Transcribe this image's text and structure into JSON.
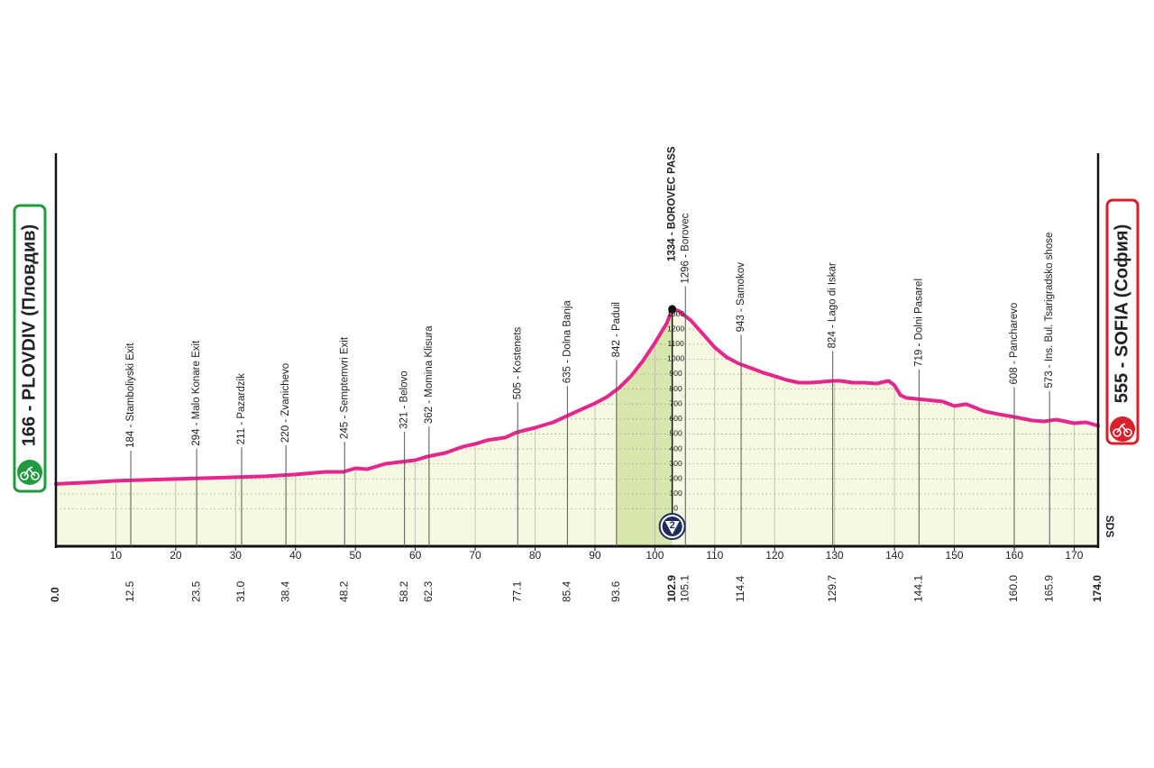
{
  "chart_data": {
    "type": "area",
    "color": "#e5268d",
    "fill_color": "#f6f8e2",
    "climb_color": "#d8e7ae",
    "grid": true,
    "x": [
      0,
      5,
      10,
      15,
      20,
      25,
      30,
      35,
      40,
      45,
      48,
      50,
      52,
      55,
      60,
      62,
      65,
      68,
      70,
      72,
      75,
      77,
      80,
      83,
      85,
      87,
      90,
      92,
      94,
      96,
      98,
      100,
      102,
      102.9,
      104,
      106,
      108,
      110,
      112,
      114,
      116,
      118,
      120,
      122,
      124,
      126,
      128,
      129.7,
      131,
      133,
      135,
      137,
      139,
      140,
      141,
      142,
      145,
      148,
      150,
      152,
      155,
      158,
      160,
      163,
      165,
      167,
      170,
      172,
      174
    ],
    "values": [
      166,
      175,
      187,
      193,
      199,
      205,
      211,
      217,
      229,
      247,
      247,
      271,
      265,
      301,
      325,
      349,
      373,
      416,
      434,
      458,
      476,
      512,
      542,
      578,
      614,
      651,
      705,
      747,
      807,
      886,
      988,
      1108,
      1241,
      1334,
      1322,
      1259,
      1169,
      1078,
      1012,
      970,
      940,
      910,
      886,
      861,
      843,
      843,
      849,
      855,
      855,
      843,
      843,
      837,
      855,
      825,
      759,
      741,
      729,
      717,
      687,
      699,
      651,
      627,
      614,
      590,
      584,
      596,
      572,
      578,
      555
    ],
    "xlim": [
      0,
      174
    ],
    "xticks": [
      10,
      20,
      30,
      40,
      50,
      60,
      70,
      80,
      90,
      100,
      110,
      120,
      130,
      140,
      150,
      160,
      170
    ],
    "ylim": [
      -250,
      2375
    ],
    "yticks": [
      0,
      100,
      200,
      300,
      400,
      500,
      600,
      700,
      800,
      900,
      1000,
      1100,
      1200,
      1300
    ],
    "start": {
      "label": "166 - PLOVDIV (Пловдив)",
      "km": {
        "value": 0,
        "label": "0.0"
      }
    },
    "finish": {
      "label": "555 - SOFIA (София)",
      "km": {
        "value": 174,
        "label": "174.0"
      }
    },
    "summit": {
      "label": "1334 - BOROVEC PASS",
      "km": 102.9,
      "elevation": 1334
    },
    "climb": {
      "category": "2",
      "start": 93.6
    },
    "sds_label": "SDS",
    "waypoints": [
      {
        "label": "184 - Stamboliyski Exit",
        "km": 12.5
      },
      {
        "label": "294 - Malo Konare Exit",
        "km": 23.5
      },
      {
        "label": "211 - Pazardzik",
        "km": {
          "value": 31,
          "label": "31.0"
        }
      },
      {
        "label": "220 - Zvanichevo",
        "km": 38.4
      },
      {
        "label": "245 - Semptemvri Exit",
        "km": 48.2
      },
      {
        "label": "321 - Belovo",
        "km": 58.2
      },
      {
        "label": "362 - Momina Klisura",
        "km": 62.3
      },
      {
        "label": "505 - Kostenets",
        "km": 77.1
      },
      {
        "label": "635 - Dolna Banja",
        "km": 85.4
      },
      {
        "label": "842 - Paduil",
        "km": 93.6
      },
      {
        "label": "1296 - Borovec",
        "km": 105.1
      },
      {
        "label": "943 - Samokov",
        "km": 114.4
      },
      {
        "label": "824 - Lago di Iskar",
        "km": 129.7
      },
      {
        "label": "719 - Dolni Pasarel",
        "km": 144.1
      },
      {
        "label": "608 - Pancharevo",
        "km": {
          "value": 160,
          "label": "160.0"
        }
      },
      {
        "label": "573 - Ins. Bul. Tsarigradsko shose",
        "km": 165.9
      }
    ]
  }
}
